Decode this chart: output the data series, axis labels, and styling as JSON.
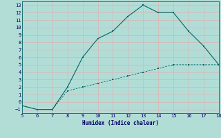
{
  "xlabel": "Humidex (Indice chaleur)",
  "bg_color": "#b2ddd6",
  "grid_color": "#d4b8b8",
  "line_color": "#006666",
  "xlim": [
    5,
    18
  ],
  "ylim": [
    -1.5,
    13.5
  ],
  "xticks": [
    5,
    6,
    7,
    8,
    9,
    10,
    11,
    12,
    13,
    14,
    15,
    16,
    17,
    18
  ],
  "yticks": [
    -1,
    0,
    1,
    2,
    3,
    4,
    5,
    6,
    7,
    8,
    9,
    10,
    11,
    12,
    13
  ],
  "line1_x": [
    5,
    6,
    7,
    8,
    9,
    10,
    11,
    12,
    13,
    14,
    15,
    16,
    17,
    18
  ],
  "line1_y": [
    -0.5,
    -1.0,
    -1.0,
    2.0,
    6.0,
    8.5,
    9.5,
    11.5,
    13.0,
    12.0,
    12.0,
    9.5,
    7.5,
    5.0
  ],
  "line2_x": [
    5,
    6,
    7,
    8,
    9,
    10,
    11,
    12,
    13,
    14,
    15,
    16,
    17,
    18
  ],
  "line2_y": [
    -0.5,
    -1.0,
    -1.0,
    1.5,
    2.0,
    2.5,
    3.0,
    3.5,
    4.0,
    4.5,
    5.0,
    5.0,
    5.0,
    5.0
  ]
}
